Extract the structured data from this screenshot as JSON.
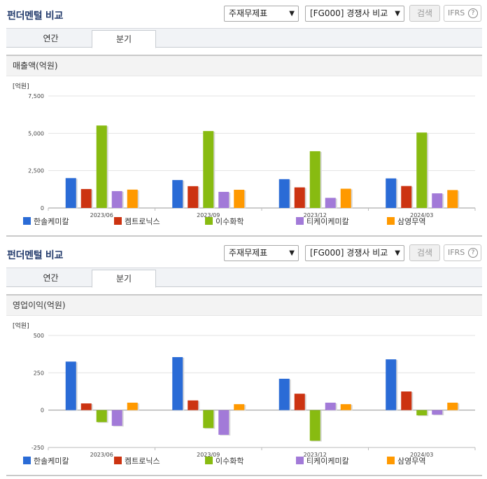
{
  "colors": {
    "한솔케미칼": "#2a6bd6",
    "켐트로닉스": "#cc3311",
    "이수화학": "#88bb11",
    "티케이케미칼": "#a27ad8",
    "삼영무역": "#ff9900"
  },
  "panels": [
    {
      "title": "펀더멘털 비교",
      "select1": "주재무제표",
      "select2": "[FG000] 경쟁사 비교",
      "search_label": "검색",
      "ifrs_label": "IFRS",
      "help_icon": "?",
      "tabs": [
        "연간",
        "분기"
      ],
      "section_title": "매출액(억원)",
      "unit": "[억원]"
    },
    {
      "title": "펀더멘털 비교",
      "select1": "주재무제표",
      "select2": "[FG000] 경쟁사 비교",
      "search_label": "검색",
      "ifrs_label": "IFRS",
      "help_icon": "?",
      "tabs": [
        "연간",
        "분기"
      ],
      "section_title": "영업이익(억원)",
      "unit": "[억원]"
    }
  ],
  "chart_data": [
    {
      "type": "bar",
      "title": "매출액(억원)",
      "unit": "[억원]",
      "categories": [
        "2023/06",
        "2023/09",
        "2023/12",
        "2024/03"
      ],
      "ylim": [
        0,
        7500
      ],
      "yticks": [
        0,
        2500,
        5000,
        7500
      ],
      "ytick_labels": [
        "0",
        "2,500",
        "5,000",
        "7,500"
      ],
      "grid": true,
      "legend": "bottom",
      "series": [
        {
          "name": "한솔케미칼",
          "values": [
            2000,
            1870,
            1930,
            1980
          ]
        },
        {
          "name": "켐트로닉스",
          "values": [
            1270,
            1460,
            1380,
            1470
          ]
        },
        {
          "name": "이수화학",
          "values": [
            5520,
            5150,
            3800,
            5050
          ]
        },
        {
          "name": "티케이케미칼",
          "values": [
            1130,
            1080,
            680,
            980
          ]
        },
        {
          "name": "삼영무역",
          "values": [
            1230,
            1220,
            1290,
            1200
          ]
        }
      ]
    },
    {
      "type": "bar",
      "title": "영업이익(억원)",
      "unit": "[억원]",
      "categories": [
        "2023/06",
        "2023/09",
        "2023/12",
        "2024/03"
      ],
      "ylim": [
        -250,
        500
      ],
      "yticks": [
        -250,
        0,
        250,
        500
      ],
      "ytick_labels": [
        "-250",
        "0",
        "250",
        "500"
      ],
      "grid": true,
      "legend": "bottom",
      "series": [
        {
          "name": "한솔케미칼",
          "values": [
            325,
            355,
            210,
            340
          ]
        },
        {
          "name": "켐트로닉스",
          "values": [
            45,
            65,
            110,
            125
          ]
        },
        {
          "name": "이수화학",
          "values": [
            -80,
            -120,
            -205,
            -35
          ]
        },
        {
          "name": "티케이케미칼",
          "values": [
            -105,
            -165,
            50,
            -30
          ]
        },
        {
          "name": "삼영무역",
          "values": [
            50,
            40,
            40,
            50
          ]
        }
      ]
    }
  ]
}
